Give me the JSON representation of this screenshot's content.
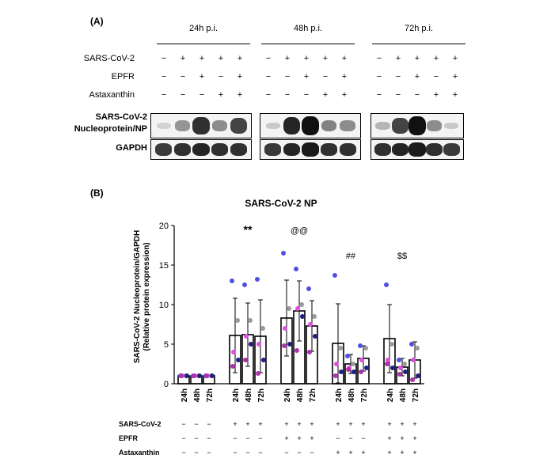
{
  "panelA": {
    "label": "(A)",
    "timepoints": [
      "24h p.i.",
      "48h p.i.",
      "72h p.i."
    ],
    "rows": [
      {
        "label": "SARS-CoV-2",
        "signs": [
          [
            "−",
            "+",
            "+",
            "+",
            "+"
          ],
          [
            "−",
            "+",
            "+",
            "+",
            "+"
          ],
          [
            "−",
            "+",
            "+",
            "+",
            "+"
          ]
        ]
      },
      {
        "label": "EPFR",
        "signs": [
          [
            "−",
            "−",
            "+",
            "−",
            "+"
          ],
          [
            "−",
            "−",
            "+",
            "−",
            "+"
          ],
          [
            "−",
            "−",
            "+",
            "−",
            "+"
          ]
        ]
      },
      {
        "label": "Astaxanthin",
        "signs": [
          [
            "−",
            "−",
            "−",
            "+",
            "+"
          ],
          [
            "−",
            "−",
            "−",
            "+",
            "+"
          ],
          [
            "−",
            "−",
            "−",
            "+",
            "+"
          ]
        ]
      }
    ],
    "blot_labels": {
      "np": "SARS-CoV-2 Nucleoprotein/NP",
      "np_line1": "SARS-CoV-2",
      "np_line2": "Nucleoprotein/NP",
      "gapdh": "GAPDH"
    },
    "np_intensity": [
      [
        0.05,
        0.35,
        0.85,
        0.4,
        0.75
      ],
      [
        0.1,
        0.9,
        1.0,
        0.45,
        0.4
      ],
      [
        0.2,
        0.75,
        1.0,
        0.4,
        0.1
      ]
    ],
    "gapdh_intensity": [
      [
        0.8,
        0.85,
        0.9,
        0.85,
        0.85
      ],
      [
        0.8,
        0.9,
        0.95,
        0.85,
        0.85
      ],
      [
        0.85,
        0.9,
        0.95,
        0.85,
        0.8
      ]
    ]
  },
  "panelB": {
    "label": "(B)",
    "rows": [
      {
        "label": "SARS-CoV-2",
        "signs": [
          "−",
          "−",
          "−",
          "+",
          "+",
          "+",
          "+",
          "+",
          "+",
          "+",
          "+",
          "+",
          "+",
          "+",
          "+"
        ]
      },
      {
        "label": "EPFR",
        "signs": [
          "−",
          "−",
          "−",
          "−",
          "−",
          "−",
          "+",
          "+",
          "+",
          "−",
          "−",
          "−",
          "+",
          "+",
          "+"
        ]
      },
      {
        "label": "Astaxanthin",
        "signs": [
          "−",
          "−",
          "−",
          "−",
          "−",
          "−",
          "−",
          "−",
          "−",
          "+",
          "+",
          "+",
          "+",
          "+",
          "+"
        ]
      }
    ]
  },
  "chart_data": {
    "type": "bar",
    "title": "SARS-CoV-2 NP",
    "ylabel_line1": "SARS-CoV-2 Nucleoprotein/GAPDH",
    "ylabel_line2": "(Relative protein expression)",
    "ylim": [
      0,
      20
    ],
    "yticks": [
      0,
      5,
      10,
      15,
      20
    ],
    "groups": 5,
    "categories": [
      "24h",
      "48h",
      "72h",
      "24h",
      "48h",
      "72h",
      "24h",
      "48h",
      "72h",
      "24h",
      "48h",
      "72h",
      "24h",
      "48h",
      "72h"
    ],
    "values": [
      1.0,
      1.0,
      1.0,
      6.1,
      6.2,
      6.0,
      8.3,
      9.2,
      7.3,
      5.1,
      2.5,
      3.2,
      5.7,
      2.1,
      3.0
    ],
    "errors": [
      0.1,
      0.1,
      0.1,
      4.7,
      4.0,
      4.6,
      4.8,
      3.8,
      3.2,
      5.0,
      1.2,
      1.6,
      4.3,
      1.1,
      2.3
    ],
    "points": [
      [
        1.0,
        1.0,
        1.0,
        1.0,
        1.0
      ],
      [
        1.0,
        1.0,
        1.0,
        1.0,
        1.0
      ],
      [
        1.0,
        1.0,
        1.0,
        1.0,
        1.0
      ],
      [
        13.0,
        8.0,
        4.0,
        3.0,
        2.2
      ],
      [
        12.5,
        8.0,
        6.0,
        5.0,
        3.0
      ],
      [
        13.2,
        7.0,
        5.0,
        3.0,
        1.3
      ],
      [
        16.5,
        9.5,
        7.0,
        5.0,
        4.8
      ],
      [
        14.5,
        10.0,
        9.5,
        8.5,
        4.2
      ],
      [
        12.0,
        8.5,
        7.5,
        6.0,
        4.0
      ],
      [
        13.7,
        4.5,
        2.5,
        1.5,
        1.0
      ],
      [
        3.5,
        2.5,
        2.0,
        1.5,
        1.8
      ],
      [
        4.8,
        4.5,
        3.0,
        2.0,
        1.5
      ],
      [
        12.5,
        5.0,
        3.0,
        2.0,
        2.5
      ],
      [
        3.0,
        2.5,
        2.0,
        1.5,
        1.2
      ],
      [
        5.0,
        4.5,
        3.0,
        1.0,
        0.5
      ]
    ],
    "point_colors": [
      "#5050e0",
      "#9a9a9a",
      "#e050e0",
      "#202080",
      "#b030b0"
    ],
    "annotations": [
      {
        "text": "**",
        "group": 1,
        "y": 19.0
      },
      {
        "text": "@@",
        "group": 2,
        "y": 19.0
      },
      {
        "text": "##",
        "group": 3,
        "y": 15.8
      },
      {
        "text": "$$",
        "group": 4,
        "y": 15.8
      }
    ]
  }
}
